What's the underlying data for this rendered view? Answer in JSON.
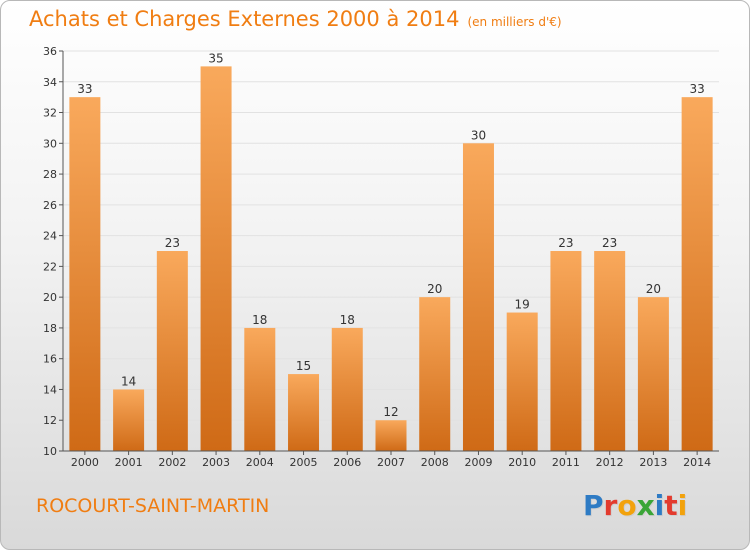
{
  "title": "Achats et Charges Externes 2000 à 2014",
  "unit": "(en milliers d'€)",
  "commune": "ROCOURT-SAINT-MARTIN",
  "logo": {
    "text": "Proxiti",
    "letters": [
      {
        "ch": "P",
        "color": "#2e7bc4"
      },
      {
        "ch": "r",
        "color": "#e33b2e"
      },
      {
        "ch": "o",
        "color": "#f2a20c"
      },
      {
        "ch": "x",
        "color": "#3aa537"
      },
      {
        "ch": "i",
        "color": "#2e7bc4"
      },
      {
        "ch": "t",
        "color": "#e33b2e"
      },
      {
        "ch": "i",
        "color": "#f2a20c"
      }
    ]
  },
  "colors": {
    "bar_light": "#f9a95c",
    "bar_dark": "#cf6a16",
    "accent": "#f07d12",
    "grid": "#e2e2e2"
  },
  "chart_data": {
    "type": "bar",
    "title": "Achats et Charges Externes 2000 à 2014",
    "categories": [
      "2000",
      "2001",
      "2002",
      "2003",
      "2004",
      "2005",
      "2006",
      "2007",
      "2008",
      "2009",
      "2010",
      "2011",
      "2012",
      "2013",
      "2014"
    ],
    "values": [
      33,
      14,
      23,
      35,
      18,
      15,
      18,
      12,
      20,
      30,
      19,
      23,
      23,
      20,
      33
    ],
    "ylim": [
      10,
      36
    ],
    "yticks": [
      10,
      12,
      14,
      16,
      18,
      20,
      22,
      24,
      26,
      28,
      30,
      32,
      34,
      36
    ],
    "grid": true,
    "xlabel": "",
    "ylabel": ""
  }
}
